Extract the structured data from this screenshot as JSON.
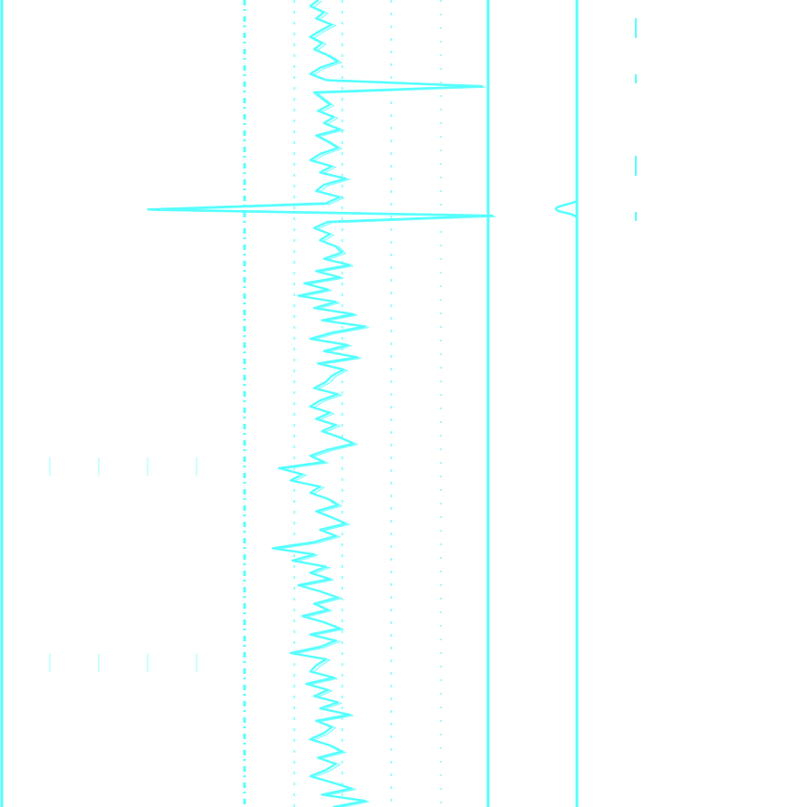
{
  "colors": {
    "background": "#ffffff",
    "trace": "#55ffff",
    "grid": "#55ffff"
  },
  "chart_data": {
    "type": "line",
    "title": "",
    "xlabel": "",
    "ylabel": "",
    "grid": true,
    "legend": "none",
    "series": [
      {
        "values": [
          0.38,
          0.3,
          0.44,
          0.36,
          0.52,
          0.4,
          0.3,
          0.42,
          0.34,
          0.48,
          0.58,
          0.4,
          0.3,
          0.46,
          2.05,
          0.34,
          0.42,
          0.5,
          0.38,
          0.54,
          0.44,
          0.6,
          0.36,
          0.48,
          0.58,
          0.4,
          0.3,
          0.52,
          0.4,
          0.66,
          0.44,
          0.36,
          0.6,
          0.46,
          -1.35,
          2.15,
          0.48,
          0.34,
          0.5,
          0.4,
          0.56,
          0.62,
          0.44,
          0.7,
          0.36,
          0.6,
          0.24,
          0.48,
          0.18,
          0.56,
          0.34,
          0.74,
          0.42,
          0.86,
          0.52,
          0.3,
          0.68,
          0.44,
          0.78,
          0.38,
          0.64,
          0.52,
          0.46,
          0.34,
          0.58,
          0.4,
          0.3,
          0.5,
          0.36,
          0.56,
          0.42,
          0.6,
          0.74,
          0.48,
          0.3,
          0.44,
          -0.02,
          0.22,
          0.1,
          0.4,
          0.3,
          0.48,
          0.58,
          0.36,
          0.52,
          0.66,
          0.4,
          0.56,
          0.34,
          -0.08,
          0.34,
          0.12,
          0.46,
          0.3,
          0.5,
          0.18,
          0.4,
          0.58,
          0.34,
          0.48,
          0.22,
          0.44,
          0.6,
          0.3,
          0.56,
          0.4,
          0.1,
          0.46,
          0.36,
          0.3,
          0.54,
          0.26,
          0.48,
          0.34,
          0.58,
          0.4,
          0.7,
          0.36,
          0.52,
          0.44,
          0.3,
          0.5,
          0.62,
          0.38,
          0.56,
          0.46,
          0.3,
          0.52,
          0.72,
          0.42,
          0.86,
          0.54
        ]
      }
    ]
  }
}
